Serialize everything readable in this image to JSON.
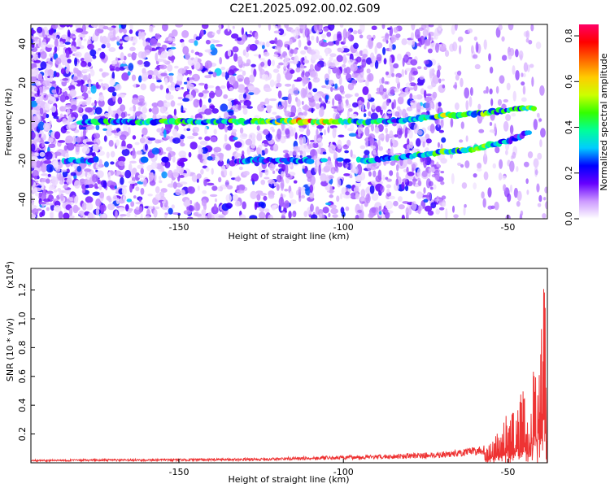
{
  "title": "C2E1.2025.092.00.02.G09",
  "chart_data": [
    {
      "type": "heatmap",
      "xlabel": "Height of straight line (km)",
      "ylabel": "Frequency (Hz)",
      "xlim": [
        -195,
        -38
      ],
      "ylim": [
        -50,
        50
      ],
      "x_ticks": [
        -150,
        -100,
        -50
      ],
      "y_ticks": [
        40,
        20,
        0,
        -20,
        -40
      ],
      "colorbar": {
        "label": "Normalized spectral amplitude",
        "range": [
          0,
          0.85
        ],
        "ticks": [
          0.0,
          0.2,
          0.4,
          0.6,
          0.8
        ],
        "colors": [
          "#ffffff",
          "#cc99ff",
          "#6600ff",
          "#0000ff",
          "#00ccff",
          "#00ff99",
          "#33ff00",
          "#ccff00",
          "#ffcc00",
          "#ff6600",
          "#ff0000",
          "#ff0066"
        ]
      },
      "dominant_tracks": [
        {
          "name": "zero-frequency track",
          "x": [
            -180,
            -150,
            -125,
            -110,
            -100,
            -90,
            -80,
            -70,
            -60,
            -50,
            -42
          ],
          "y": [
            0,
            0,
            0,
            0,
            0,
            0,
            1,
            3,
            4,
            6,
            7
          ],
          "peak": [
            0.45,
            0.5,
            0.5,
            0.85,
            0.55,
            0.45,
            0.4,
            0.6,
            0.6,
            0.45,
            0.55
          ]
        },
        {
          "name": "lower track",
          "x": [
            -185,
            -130,
            -115,
            -92,
            -82,
            -60,
            -50,
            -43
          ],
          "y": [
            -20,
            -20,
            -20,
            -20,
            -18,
            -14,
            -10,
            -5
          ],
          "peak": [
            0.35,
            0.35,
            0.35,
            0.45,
            0.45,
            0.6,
            0.35,
            0.3
          ]
        }
      ]
    },
    {
      "type": "line",
      "xlabel": "Height of straight line (km)",
      "ylabel": "SNR (10 * v/v)",
      "y_multiplier": "(x10",
      "y_multiplier_exponent": "4",
      "y_multiplier_close": ")",
      "xlim": [
        -195,
        -38
      ],
      "ylim": [
        0,
        1.35
      ],
      "x_ticks": [
        -150,
        -100,
        -50
      ],
      "y_ticks": [
        0.2,
        0.4,
        0.6,
        0.8,
        1.0,
        1.2
      ],
      "color": "#ee3333",
      "envelope": {
        "x": [
          -195,
          -150,
          -125,
          -110,
          -100,
          -90,
          -80,
          -70,
          -62,
          -56,
          -53,
          -50,
          -47,
          -44,
          -42,
          -40,
          -39,
          -38
        ],
        "y": [
          0.02,
          0.025,
          0.03,
          0.04,
          0.045,
          0.05,
          0.06,
          0.07,
          0.09,
          0.12,
          0.22,
          0.35,
          0.45,
          0.6,
          0.75,
          0.9,
          1.35,
          1.2
        ]
      }
    }
  ]
}
